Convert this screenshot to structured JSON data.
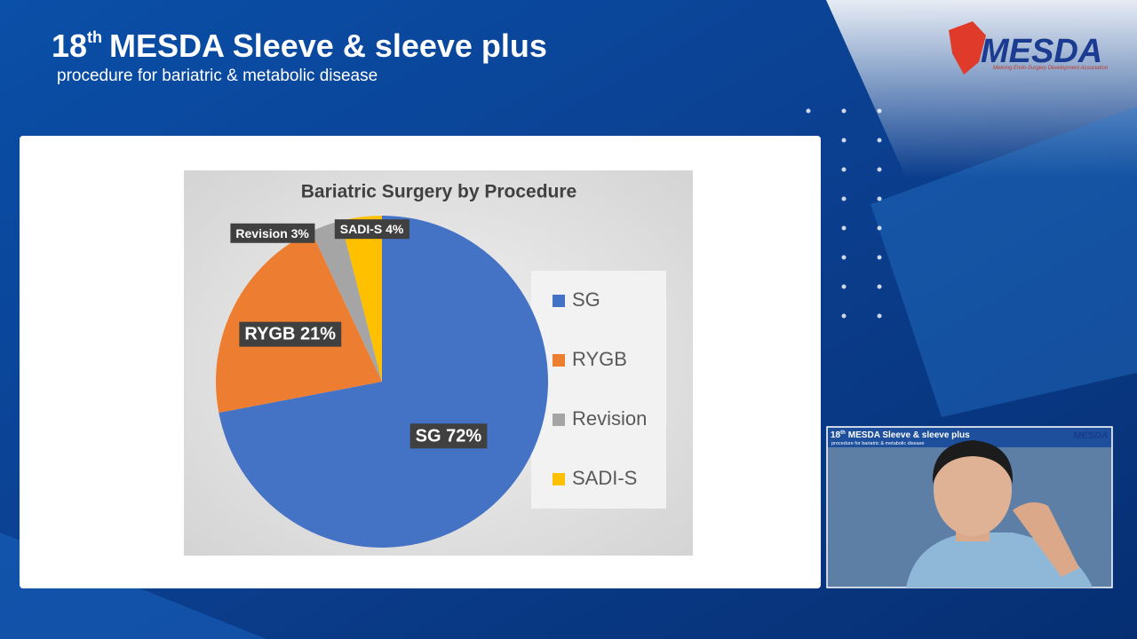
{
  "header": {
    "title_number": "18",
    "title_suffix": "th",
    "title": "MESDA Sleeve & sleeve plus",
    "subtitle": "procedure for bariatric & metabolic disease"
  },
  "logo": {
    "name": "MESDA",
    "tagline": "Mekong Endo-Surgery Development Association"
  },
  "chart_data": {
    "type": "pie",
    "title": "Bariatric Surgery by Procedure",
    "categories": [
      "SG",
      "RYGB",
      "Revision",
      "SADI-S"
    ],
    "values": [
      72,
      21,
      3,
      4
    ],
    "value_labels": [
      "SG 72%",
      "RYGB 21%",
      "Revision 3%",
      "SADI-S 4%"
    ],
    "colors": [
      "#4472c4",
      "#ed7d31",
      "#a5a5a5",
      "#ffc000"
    ],
    "start_angle": 0,
    "direction": "clockwise",
    "legend": "right"
  }
}
